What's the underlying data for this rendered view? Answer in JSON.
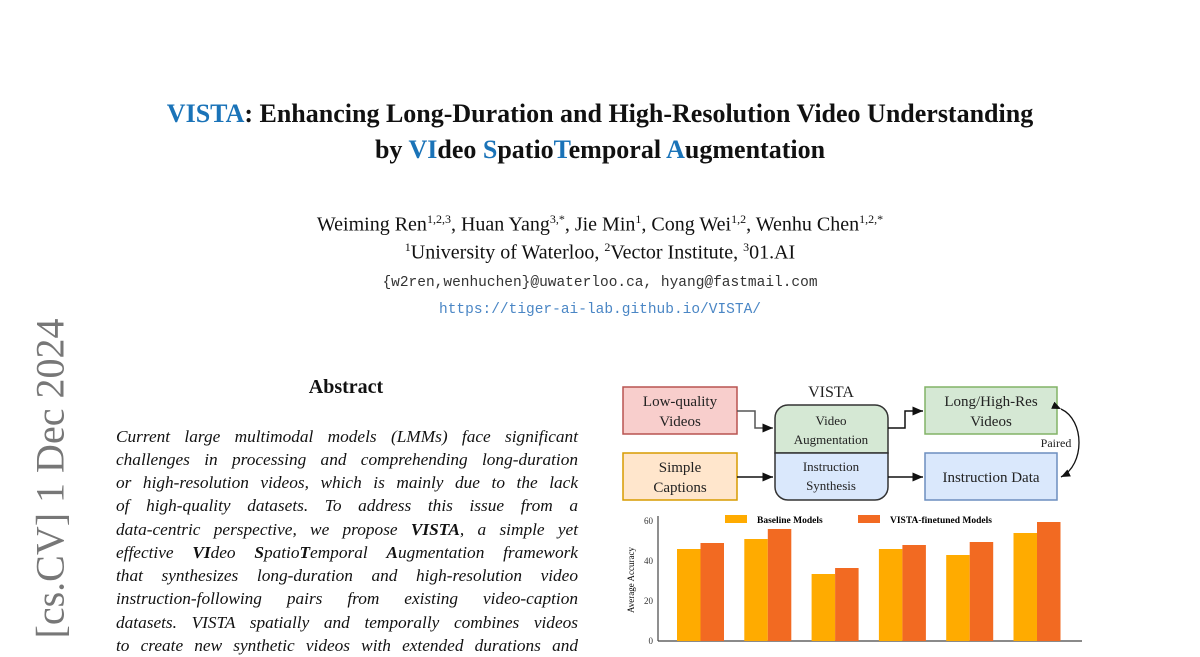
{
  "arxiv_stamp": "[cs.CV]  1 Dec 2024",
  "title": {
    "line1_accent": "VISTA",
    "line1_rest": ": Enhancing Long-Duration and High-Resolution Video Understanding",
    "line2_parts": [
      "by ",
      "VI",
      "deo ",
      "S",
      "patio",
      "T",
      "emporal ",
      "A",
      "ugmentation"
    ]
  },
  "authors": [
    {
      "name": "Weiming Ren",
      "sup": "1,2,3"
    },
    {
      "name": "Huan Yang",
      "sup": "3,*"
    },
    {
      "name": "Jie Min",
      "sup": "1"
    },
    {
      "name": "Cong Wei",
      "sup": "1,2"
    },
    {
      "name": "Wenhu Chen",
      "sup": "1,2,*"
    }
  ],
  "affiliations": [
    {
      "sup": "1",
      "name": "University of Waterloo"
    },
    {
      "sup": "2",
      "name": "Vector Institute"
    },
    {
      "sup": "3",
      "name": "01.AI"
    }
  ],
  "emails": "{w2ren,wenhuchen}@uwaterloo.ca, hyang@fastmail.com",
  "project_url": "https://tiger-ai-lab.github.io/VISTA/",
  "abstract": {
    "heading": "Abstract",
    "lines": [
      "Current large multimodal models (LMMs) face significant",
      "challenges in processing and comprehending long-duration",
      "or high-resolution videos, which is mainly due to the lack",
      "of high-quality datasets.  To address this issue from a",
      [
        "data-centric perspective, we propose ",
        "VISTA",
        ", a simple yet"
      ],
      [
        "effective ",
        "VI",
        "deo ",
        "S",
        "patio",
        "T",
        "emporal ",
        "A",
        "ugmentation framework"
      ],
      "that synthesizes long-duration and high-resolution video",
      "instruction-following pairs from existing video-caption",
      "datasets. VISTA spatially and temporally combines videos",
      "to create new synthetic videos with extended durations and"
    ]
  },
  "diagram": {
    "title": "VISTA",
    "inputs": [
      [
        "Low-quality",
        "Videos"
      ],
      [
        "Simple",
        "Captions"
      ]
    ],
    "modules": [
      [
        "Video",
        "Augmentation"
      ],
      [
        "Instruction",
        "Synthesis"
      ]
    ],
    "outputs": [
      [
        "Long/High-Res",
        "Videos"
      ],
      [
        "Instruction Data"
      ]
    ],
    "pair_label": "Paired",
    "colors": {
      "red_fill": "#f8cecc",
      "red_border": "#b85450",
      "orange_fill": "#ffe6cc",
      "orange_border": "#d79b00",
      "green_fill": "#d5e8d4",
      "green_border": "#82b366",
      "blue_fill": "#dae8fc",
      "blue_border": "#6c8ebf"
    }
  },
  "chart_data": {
    "type": "bar",
    "ylabel": "Average Accuracy",
    "ylim": [
      0,
      60
    ],
    "yticks": [
      "0",
      "20",
      "40",
      "60"
    ],
    "legend_position": "top",
    "series": [
      {
        "name": "Baseline Models",
        "color": "#ffab00",
        "values": [
          46,
          51,
          33.5,
          46,
          43,
          54
        ]
      },
      {
        "name": "VISTA-finetuned Models",
        "color": "#f26a22",
        "values": [
          49,
          56,
          36.5,
          48,
          49.5,
          59.5
        ]
      }
    ]
  }
}
